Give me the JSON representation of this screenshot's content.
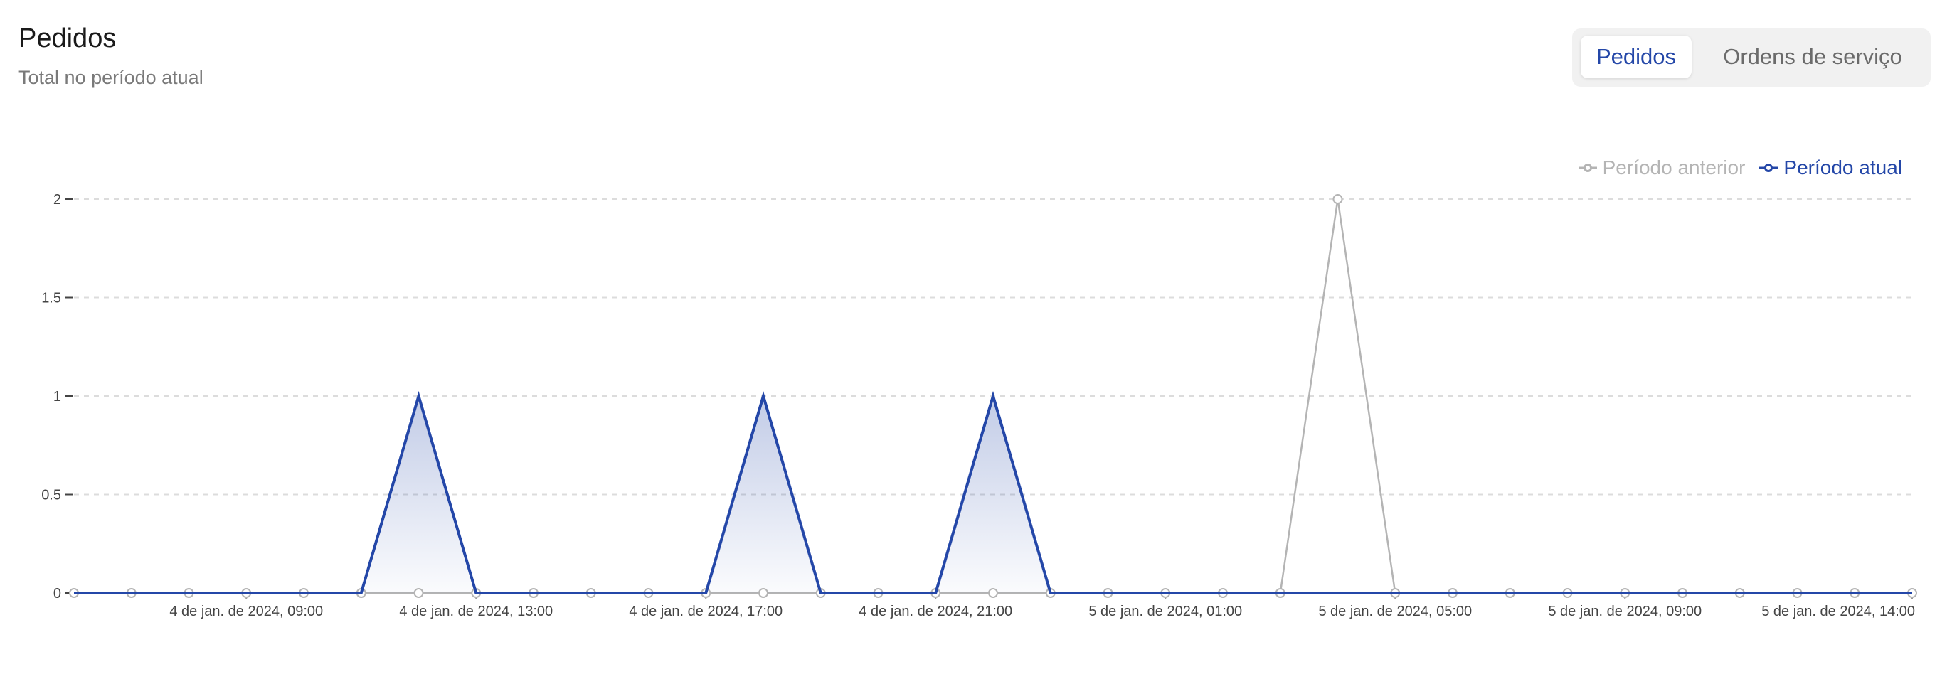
{
  "header": {
    "title": "Pedidos",
    "subtitle": "Total no período atual"
  },
  "tabs": [
    {
      "label": "Pedidos",
      "active": true
    },
    {
      "label": "Ordens de serviço",
      "active": false
    }
  ],
  "colors": {
    "current": "#2447a8",
    "previous": "#b4b4b4",
    "grid": "#dcdcdc",
    "tick_text": "#444444"
  },
  "legend": {
    "previous_label": "Período anterior",
    "current_label": "Período atual",
    "placement": "top-right"
  },
  "chart_data": {
    "type": "line",
    "title": "",
    "xlabel": "",
    "ylabel": "",
    "ylim": [
      0,
      2
    ],
    "yticks": [
      "0",
      "0.5",
      "1",
      "1.5",
      "2"
    ],
    "grid": true,
    "x_tick_labels": [
      "4 de jan. de 2024, 09:00",
      "4 de jan. de 2024, 13:00",
      "4 de jan. de 2024, 17:00",
      "4 de jan. de 2024, 21:00",
      "5 de jan. de 2024, 01:00",
      "5 de jan. de 2024, 05:00",
      "5 de jan. de 2024, 09:00",
      "5 de jan. de 2024, 14:00"
    ],
    "x_tick_hours": [
      3,
      7,
      11,
      15,
      19,
      23,
      27,
      32
    ],
    "x_hours": [
      0,
      1,
      2,
      3,
      4,
      5,
      6,
      7,
      8,
      9,
      10,
      11,
      12,
      13,
      14,
      15,
      16,
      17,
      18,
      19,
      20,
      21,
      22,
      23,
      24,
      25,
      26,
      27,
      28,
      29,
      30,
      31,
      32
    ],
    "series": [
      {
        "name": "Período anterior",
        "role": "previous",
        "values": [
          0,
          0,
          0,
          0,
          0,
          0,
          0,
          0,
          0,
          0,
          0,
          0,
          0,
          0,
          0,
          0,
          0,
          0,
          0,
          0,
          0,
          0,
          2,
          0,
          0,
          0,
          0,
          0,
          0,
          0,
          0,
          0,
          0
        ]
      },
      {
        "name": "Período atual",
        "role": "current",
        "values": [
          0,
          0,
          0,
          0,
          0,
          0,
          1,
          0,
          0,
          0,
          0,
          0,
          1,
          0,
          0,
          0,
          1,
          0,
          0,
          0,
          0,
          0,
          0,
          0,
          0,
          0,
          0,
          0,
          0,
          0,
          0,
          0,
          0
        ]
      }
    ]
  }
}
